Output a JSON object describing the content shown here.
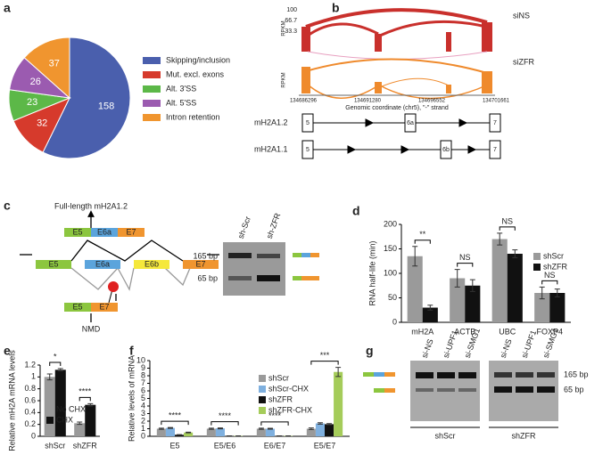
{
  "panel_labels": [
    "a",
    "b",
    "c",
    "d",
    "e",
    "f",
    "g"
  ],
  "chart_data": [
    {
      "type": "pie",
      "categories": [
        "Skipping/inclusion",
        "Mut. excl. exons",
        "Alt. 3'SS",
        "Alt. 5'SS",
        "Intron retention"
      ],
      "values": [
        158,
        32,
        23,
        26,
        37
      ],
      "colors": [
        "#4a5fad",
        "#d63a2c",
        "#5cb848",
        "#9b5bb0",
        "#f0952f"
      ]
    },
    {
      "type": "bar",
      "ylabel": "RNA half-life (min)",
      "categories": [
        "mH2A",
        "ACTB",
        "UBC",
        "FOXP4"
      ],
      "series": [
        {
          "name": "shScr",
          "color": "#9a9a9a",
          "values": [
            135,
            90,
            170,
            60
          ],
          "errors": [
            20,
            18,
            12,
            12
          ]
        },
        {
          "name": "shZFR",
          "color": "#111111",
          "values": [
            30,
            75,
            140,
            60
          ],
          "errors": [
            5,
            12,
            8,
            8
          ]
        }
      ],
      "annotations": [
        "**",
        "NS",
        "NS",
        "NS"
      ],
      "ylim": [
        0,
        200
      ],
      "yticks": [
        0,
        50,
        100,
        150,
        200
      ]
    },
    {
      "type": "bar",
      "ylabel": "Relative mH2A mRNA levels",
      "categories": [
        "shScr",
        "shZFR"
      ],
      "series": [
        {
          "name": "No CHX",
          "color": "#9a9a9a",
          "values": [
            1.0,
            0.22
          ],
          "errors": [
            0.05,
            0.02
          ]
        },
        {
          "name": "CHX",
          "color": "#111111",
          "values": [
            1.12,
            0.53
          ],
          "errors": [
            0.02,
            0.02
          ]
        }
      ],
      "annotations": [
        "*",
        "****"
      ],
      "ylim": [
        0,
        1.2
      ],
      "yticks": [
        0,
        0.2,
        0.4,
        0.6,
        0.8,
        1,
        1.2
      ]
    },
    {
      "type": "bar",
      "ylabel": "Relative levels of mRNA",
      "categories": [
        "E5",
        "E5/E6",
        "E6/E7",
        "E5/E7"
      ],
      "series": [
        {
          "name": "shScr",
          "color": "#9a9a9a",
          "values": [
            1,
            1,
            1,
            1
          ],
          "errors": [
            0.08,
            0.08,
            0.08,
            0.1
          ]
        },
        {
          "name": "shScr-CHX",
          "color": "#7fb0df",
          "values": [
            1.1,
            1.05,
            1.0,
            1.7
          ],
          "errors": [
            0.06,
            0.06,
            0.06,
            0.1
          ]
        },
        {
          "name": "shZFR",
          "color": "#111111",
          "values": [
            0.2,
            0.05,
            0.05,
            1.6
          ],
          "errors": [
            0.02,
            0.01,
            0.01,
            0.08
          ]
        },
        {
          "name": "shZFR-CHX",
          "color": "#a5cc5a",
          "values": [
            0.5,
            0.05,
            0.05,
            8.5
          ],
          "errors": [
            0.05,
            0.01,
            0.01,
            0.6
          ]
        }
      ],
      "annotations": [
        "****",
        "****",
        "****",
        "***"
      ],
      "ylim": [
        0,
        10
      ],
      "yticks": [
        0,
        1,
        2,
        3,
        4,
        5,
        6,
        7,
        8,
        9,
        10
      ]
    }
  ],
  "panel_b": {
    "rpkm": "RPKM",
    "ticks": [
      "100",
      "66.7",
      "33.3"
    ],
    "top_label": "siNS",
    "bottom_label": "siZFR",
    "coords": [
      "134686296",
      "134691280",
      "134696552",
      "134701661"
    ],
    "axis_label": "Genomic coordinate (chr5), \"-\" strand",
    "isoforms": [
      {
        "name": "mH2A1.2",
        "exons": [
          "5",
          "6a",
          "7"
        ]
      },
      {
        "name": "mH2A1.1",
        "exons": [
          "5",
          "6b",
          "7"
        ]
      }
    ]
  },
  "panel_c": {
    "full_length": "Full-length mH2A1.2",
    "top_exons": [
      "E5",
      "E6a",
      "E7"
    ],
    "middle_exons": [
      "E5",
      "E6a",
      "E6b",
      "E7"
    ],
    "bottom_exons": [
      "E5",
      "E7"
    ],
    "nmd": "NMD",
    "lanes": [
      "sh-Scr",
      "sh-ZFR"
    ],
    "sizes": [
      "165 bp",
      "65 bp"
    ]
  },
  "panel_g": {
    "lanes": [
      "si-NS",
      "si-UPF1",
      "si-SMG1"
    ],
    "sizes": [
      "165 bp",
      "65 bp"
    ],
    "groups": [
      "shScr",
      "shZFR"
    ]
  }
}
